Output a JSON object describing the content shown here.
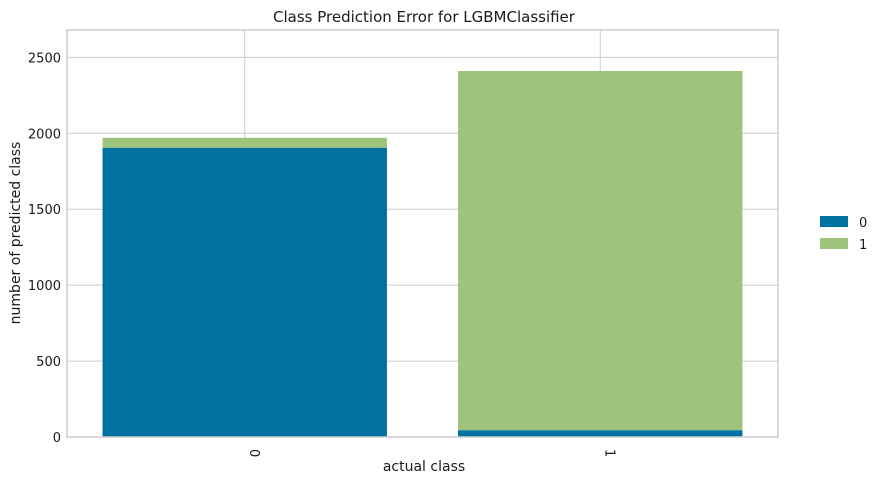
{
  "chart_data": {
    "type": "bar",
    "stacked": true,
    "title": "Class Prediction Error for LGBMClassifier",
    "xlabel": "actual class",
    "ylabel": "number of predicted class",
    "categories": [
      "0",
      "1"
    ],
    "series": [
      {
        "name": "0",
        "values": [
          1905,
          45
        ],
        "color": "#0072a2"
      },
      {
        "name": "1",
        "values": [
          65,
          2365
        ],
        "color": "#9ec37a"
      }
    ],
    "ylim": [
      0,
      2680
    ],
    "yticks": [
      0,
      500,
      1000,
      1500,
      2000,
      2500
    ],
    "grid": true,
    "legend_position": "right",
    "colors": {
      "grid": "#cccccc",
      "frame": "#cccccc",
      "text": "#1a1a1a"
    }
  }
}
